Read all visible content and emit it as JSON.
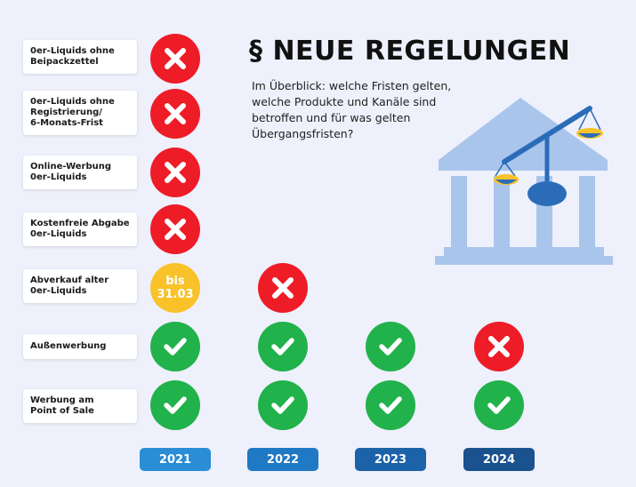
{
  "header": {
    "title": "§ NEUE REGELUNGEN",
    "subtitle": "Im Überblick: welche Fristen gelten, welche Produkte und Kanäle sind betroffen und für was gelten Übergangsfristen?"
  },
  "rows": [
    {
      "label": "0er-Liquids ohne\nBeipackzettel",
      "status": [
        "no",
        "",
        "",
        ""
      ]
    },
    {
      "label": "0er-Liquids ohne\nRegistrierung/\n6-Monats-Frist",
      "status": [
        "no",
        "",
        "",
        ""
      ]
    },
    {
      "label": "Online-Werbung\n0er-Liquids",
      "status": [
        "no",
        "",
        "",
        ""
      ]
    },
    {
      "label": "Kostenfreie Abgabe\n0er-Liquids",
      "status": [
        "no",
        "",
        "",
        ""
      ]
    },
    {
      "label": "Abverkauf alter\n0er-Liquids",
      "status": [
        "until",
        "no",
        "",
        ""
      ],
      "until_text": "bis\n31.03"
    },
    {
      "label": "Außenwerbung",
      "status": [
        "yes",
        "yes",
        "yes",
        "no"
      ]
    },
    {
      "label": "Werbung am\nPoint of Sale",
      "status": [
        "yes",
        "yes",
        "yes",
        "yes"
      ]
    }
  ],
  "years": [
    "2021",
    "2022",
    "2023",
    "2024"
  ],
  "colors": {
    "no": "#ee1c27",
    "yes": "#21b24b",
    "until": "#f8c228",
    "year_2021": "#2a8dd6",
    "year_2022": "#1f79c4",
    "year_2023": "#1c62a8",
    "year_2024": "#19528f",
    "illustration": "#a9c5ec",
    "scale": "#2b6cb8"
  },
  "icons": {
    "no": "x-icon",
    "yes": "check-icon",
    "illustration": "courthouse-scales-icon"
  }
}
